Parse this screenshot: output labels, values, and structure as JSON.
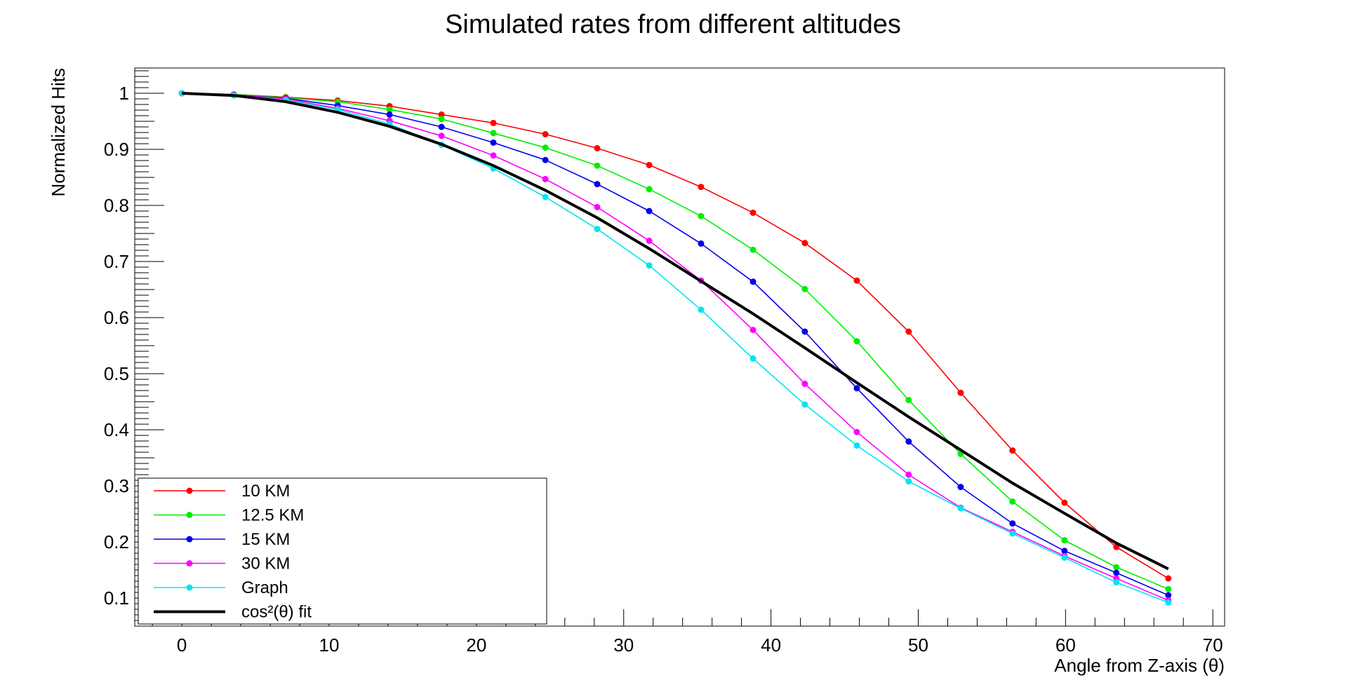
{
  "chart_data": {
    "type": "line",
    "title": "Simulated rates from different altitudes",
    "xlabel": "Angle from Z-axis (θ)",
    "ylabel": "Normalized Hits",
    "xlim": [
      -3.2,
      70.8
    ],
    "ylim": [
      0.05,
      1.045
    ],
    "xticks": [
      0,
      10,
      20,
      30,
      40,
      50,
      60,
      70
    ],
    "xtick_labels": [
      "0",
      "10",
      "20",
      "30",
      "40",
      "50",
      "60",
      "70"
    ],
    "yticks": [
      0.1,
      0.2,
      0.3,
      0.4,
      0.5,
      0.6,
      0.7,
      0.8,
      0.9,
      1.0
    ],
    "ytick_labels": [
      "0.1",
      "0.2",
      "0.3",
      "0.4",
      "0.5",
      "0.6",
      "0.7",
      "0.8",
      "0.9",
      "1"
    ],
    "grid": false,
    "legend_position": "bottom-left",
    "x": [
      0,
      3.53,
      7.05,
      10.58,
      14.1,
      17.63,
      21.15,
      24.68,
      28.2,
      31.73,
      35.25,
      38.78,
      42.3,
      45.83,
      49.35,
      52.88,
      56.4,
      59.93,
      63.45,
      66.98
    ],
    "series": [
      {
        "name": "10 KM",
        "color": "#ff0000",
        "marker": true,
        "values": [
          1.0,
          0.998,
          0.993,
          0.987,
          0.977,
          0.962,
          0.947,
          0.927,
          0.902,
          0.872,
          0.833,
          0.787,
          0.733,
          0.666,
          0.575,
          0.466,
          0.363,
          0.27,
          0.191,
          0.135
        ]
      },
      {
        "name": "12.5 KM",
        "color": "#00ee00",
        "marker": true,
        "values": [
          1.0,
          0.998,
          0.992,
          0.985,
          0.971,
          0.954,
          0.929,
          0.903,
          0.871,
          0.829,
          0.781,
          0.721,
          0.651,
          0.558,
          0.453,
          0.357,
          0.272,
          0.203,
          0.155,
          0.116
        ]
      },
      {
        "name": "15 KM",
        "color": "#0000ee",
        "marker": true,
        "values": [
          1.0,
          0.997,
          0.991,
          0.978,
          0.962,
          0.94,
          0.912,
          0.881,
          0.838,
          0.79,
          0.732,
          0.664,
          0.575,
          0.474,
          0.379,
          0.298,
          0.233,
          0.184,
          0.145,
          0.105
        ]
      },
      {
        "name": "30 KM",
        "color": "#ff00ff",
        "marker": true,
        "values": [
          1.0,
          0.997,
          0.99,
          0.973,
          0.951,
          0.924,
          0.889,
          0.847,
          0.797,
          0.737,
          0.666,
          0.578,
          0.482,
          0.396,
          0.32,
          0.261,
          0.218,
          0.175,
          0.135,
          0.096
        ]
      },
      {
        "name": "Graph",
        "color": "#00e5ee",
        "marker": true,
        "values": [
          1.0,
          0.996,
          0.988,
          0.971,
          0.945,
          0.908,
          0.866,
          0.815,
          0.758,
          0.693,
          0.614,
          0.527,
          0.445,
          0.372,
          0.308,
          0.26,
          0.215,
          0.172,
          0.128,
          0.092
        ]
      },
      {
        "name": "cos²(θ) fit",
        "color": "#000000",
        "marker": false,
        "fit": true,
        "values": [
          1.0,
          0.996,
          0.985,
          0.966,
          0.941,
          0.909,
          0.871,
          0.827,
          0.778,
          0.723,
          0.665,
          0.607,
          0.546,
          0.484,
          0.423,
          0.364,
          0.305,
          0.251,
          0.198,
          0.152
        ]
      }
    ]
  }
}
